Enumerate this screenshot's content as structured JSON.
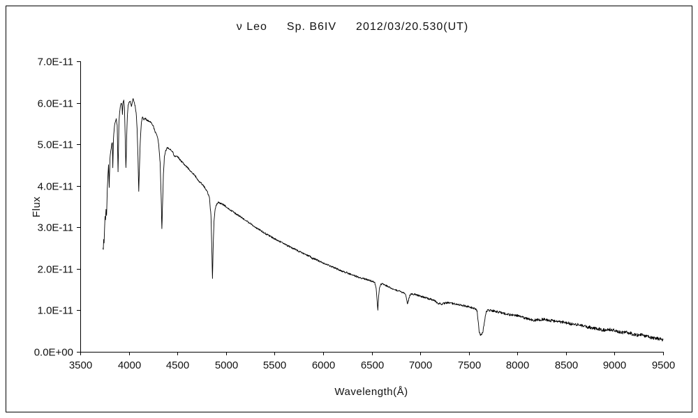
{
  "title": {
    "star": "ν Leo",
    "spectral_type": "Sp. B6IV",
    "date": "2012/03/20.530(UT)"
  },
  "chart_data": {
    "type": "line",
    "title": "ν Leo  Sp. B6IV  2012/03/20.530(UT)",
    "xlabel": "Wavelength(Å)",
    "ylabel": "Flux",
    "xlim": [
      3500,
      9500
    ],
    "ylim": [
      0,
      7e-11
    ],
    "x_ticks": [
      3500,
      4000,
      4500,
      5000,
      5500,
      6000,
      6500,
      7000,
      7500,
      8000,
      8500,
      9000,
      9500
    ],
    "y_tick_labels": [
      "0.0E+00",
      "1.0E-11",
      "2.0E-11",
      "3.0E-11",
      "4.0E-11",
      "5.0E-11",
      "6.0E-11",
      "7.0E-11"
    ],
    "grid": false,
    "legend": false,
    "line_color": "#000000",
    "points_scale": 1e-11,
    "points": [
      [
        3733,
        2.52
      ],
      [
        3737,
        2.45
      ],
      [
        3741,
        2.72
      ],
      [
        3745,
        2.62
      ],
      [
        3750,
        2.95
      ],
      [
        3755,
        3.28
      ],
      [
        3760,
        3.18
      ],
      [
        3765,
        3.45
      ],
      [
        3771,
        3.28
      ],
      [
        3778,
        3.9
      ],
      [
        3785,
        4.28
      ],
      [
        3791,
        4.5
      ],
      [
        3798,
        3.95
      ],
      [
        3806,
        4.68
      ],
      [
        3815,
        4.85
      ],
      [
        3824,
        5.0
      ],
      [
        3830,
        5.05
      ],
      [
        3835,
        4.42
      ],
      [
        3842,
        5.15
      ],
      [
        3850,
        5.4
      ],
      [
        3860,
        5.55
      ],
      [
        3870,
        5.6
      ],
      [
        3880,
        5.45
      ],
      [
        3889,
        4.35
      ],
      [
        3898,
        5.5
      ],
      [
        3905,
        5.78
      ],
      [
        3915,
        5.95
      ],
      [
        3925,
        6.0
      ],
      [
        3930,
        5.9
      ],
      [
        3934,
        5.72
      ],
      [
        3940,
        6.0
      ],
      [
        3948,
        6.08
      ],
      [
        3955,
        5.88
      ],
      [
        3962,
        5.2
      ],
      [
        3970,
        4.42
      ],
      [
        3978,
        5.2
      ],
      [
        3985,
        5.7
      ],
      [
        3993,
        5.95
      ],
      [
        4001,
        6.0
      ],
      [
        4010,
        6.05
      ],
      [
        4019,
        6.0
      ],
      [
        4026,
        5.9
      ],
      [
        4035,
        6.02
      ],
      [
        4045,
        6.1
      ],
      [
        4055,
        6.0
      ],
      [
        4065,
        5.92
      ],
      [
        4075,
        5.75
      ],
      [
        4085,
        5.4
      ],
      [
        4094,
        4.7
      ],
      [
        4102,
        3.85
      ],
      [
        4110,
        4.5
      ],
      [
        4118,
        5.1
      ],
      [
        4128,
        5.5
      ],
      [
        4140,
        5.65
      ],
      [
        4155,
        5.6
      ],
      [
        4170,
        5.62
      ],
      [
        4190,
        5.58
      ],
      [
        4210,
        5.55
      ],
      [
        4230,
        5.52
      ],
      [
        4250,
        5.45
      ],
      [
        4271,
        5.3
      ],
      [
        4290,
        5.22
      ],
      [
        4308,
        5.0
      ],
      [
        4322,
        4.55
      ],
      [
        4332,
        3.8
      ],
      [
        4340,
        2.95
      ],
      [
        4348,
        3.62
      ],
      [
        4356,
        4.3
      ],
      [
        4366,
        4.7
      ],
      [
        4380,
        4.85
      ],
      [
        4395,
        4.92
      ],
      [
        4410,
        4.9
      ],
      [
        4430,
        4.87
      ],
      [
        4450,
        4.83
      ],
      [
        4471,
        4.7
      ],
      [
        4490,
        4.73
      ],
      [
        4510,
        4.68
      ],
      [
        4530,
        4.62
      ],
      [
        4550,
        4.57
      ],
      [
        4570,
        4.52
      ],
      [
        4590,
        4.47
      ],
      [
        4610,
        4.42
      ],
      [
        4630,
        4.37
      ],
      [
        4650,
        4.32
      ],
      [
        4670,
        4.27
      ],
      [
        4690,
        4.22
      ],
      [
        4713,
        4.12
      ],
      [
        4730,
        4.1
      ],
      [
        4750,
        4.05
      ],
      [
        4770,
        4.0
      ],
      [
        4790,
        3.93
      ],
      [
        4810,
        3.85
      ],
      [
        4830,
        3.7
      ],
      [
        4845,
        3.3
      ],
      [
        4853,
        2.6
      ],
      [
        4861,
        1.75
      ],
      [
        4869,
        2.6
      ],
      [
        4877,
        3.15
      ],
      [
        4886,
        3.4
      ],
      [
        4895,
        3.5
      ],
      [
        4905,
        3.55
      ],
      [
        4920,
        3.6
      ],
      [
        4940,
        3.58
      ],
      [
        4960,
        3.56
      ],
      [
        4980,
        3.53
      ],
      [
        5000,
        3.5
      ],
      [
        5025,
        3.45
      ],
      [
        5050,
        3.41
      ],
      [
        5075,
        3.37
      ],
      [
        5100,
        3.33
      ],
      [
        5125,
        3.29
      ],
      [
        5150,
        3.25
      ],
      [
        5175,
        3.21
      ],
      [
        5200,
        3.17
      ],
      [
        5225,
        3.13
      ],
      [
        5250,
        3.09
      ],
      [
        5275,
        3.05
      ],
      [
        5300,
        3.01
      ],
      [
        5330,
        2.96
      ],
      [
        5360,
        2.92
      ],
      [
        5390,
        2.87
      ],
      [
        5420,
        2.83
      ],
      [
        5450,
        2.79
      ],
      [
        5480,
        2.75
      ],
      [
        5510,
        2.71
      ],
      [
        5540,
        2.67
      ],
      [
        5570,
        2.64
      ],
      [
        5600,
        2.6
      ],
      [
        5630,
        2.56
      ],
      [
        5660,
        2.53
      ],
      [
        5690,
        2.49
      ],
      [
        5720,
        2.46
      ],
      [
        5750,
        2.42
      ],
      [
        5780,
        2.39
      ],
      [
        5810,
        2.35
      ],
      [
        5840,
        2.32
      ],
      [
        5870,
        2.29
      ],
      [
        5890,
        2.25
      ],
      [
        5912,
        2.24
      ],
      [
        5940,
        2.21
      ],
      [
        5970,
        2.17
      ],
      [
        6000,
        2.14
      ],
      [
        6030,
        2.11
      ],
      [
        6060,
        2.08
      ],
      [
        6090,
        2.05
      ],
      [
        6120,
        2.02
      ],
      [
        6150,
        1.99
      ],
      [
        6180,
        1.96
      ],
      [
        6210,
        1.93
      ],
      [
        6240,
        1.91
      ],
      [
        6270,
        1.88
      ],
      [
        6300,
        1.85
      ],
      [
        6330,
        1.83
      ],
      [
        6360,
        1.8
      ],
      [
        6390,
        1.78
      ],
      [
        6420,
        1.76
      ],
      [
        6450,
        1.74
      ],
      [
        6480,
        1.72
      ],
      [
        6510,
        1.7
      ],
      [
        6532,
        1.66
      ],
      [
        6546,
        1.52
      ],
      [
        6556,
        1.22
      ],
      [
        6563,
        1.0
      ],
      [
        6571,
        1.32
      ],
      [
        6580,
        1.55
      ],
      [
        6591,
        1.62
      ],
      [
        6605,
        1.64
      ],
      [
        6620,
        1.62
      ],
      [
        6640,
        1.6
      ],
      [
        6660,
        1.58
      ],
      [
        6680,
        1.56
      ],
      [
        6700,
        1.54
      ],
      [
        6720,
        1.52
      ],
      [
        6740,
        1.5
      ],
      [
        6760,
        1.48
      ],
      [
        6780,
        1.47
      ],
      [
        6800,
        1.45
      ],
      [
        6820,
        1.43
      ],
      [
        6840,
        1.41
      ],
      [
        6855,
        1.34
      ],
      [
        6867,
        1.16
      ],
      [
        6876,
        1.21
      ],
      [
        6884,
        1.3
      ],
      [
        6895,
        1.37
      ],
      [
        6910,
        1.4
      ],
      [
        6930,
        1.39
      ],
      [
        6950,
        1.38
      ],
      [
        6970,
        1.36
      ],
      [
        7000,
        1.34
      ],
      [
        7030,
        1.32
      ],
      [
        7060,
        1.3
      ],
      [
        7090,
        1.28
      ],
      [
        7120,
        1.26
      ],
      [
        7150,
        1.23
      ],
      [
        7170,
        1.19
      ],
      [
        7190,
        1.17
      ],
      [
        7215,
        1.15
      ],
      [
        7240,
        1.16
      ],
      [
        7265,
        1.18
      ],
      [
        7290,
        1.18
      ],
      [
        7315,
        1.17
      ],
      [
        7340,
        1.16
      ],
      [
        7370,
        1.15
      ],
      [
        7400,
        1.13
      ],
      [
        7430,
        1.12
      ],
      [
        7460,
        1.1
      ],
      [
        7490,
        1.09
      ],
      [
        7520,
        1.07
      ],
      [
        7550,
        1.05
      ],
      [
        7572,
        1.03
      ],
      [
        7586,
        0.97
      ],
      [
        7596,
        0.73
      ],
      [
        7606,
        0.5
      ],
      [
        7616,
        0.42
      ],
      [
        7626,
        0.4
      ],
      [
        7636,
        0.44
      ],
      [
        7646,
        0.5
      ],
      [
        7656,
        0.63
      ],
      [
        7666,
        0.8
      ],
      [
        7676,
        0.93
      ],
      [
        7686,
        0.99
      ],
      [
        7700,
        1.01
      ],
      [
        7720,
        1.0
      ],
      [
        7740,
        0.99
      ],
      [
        7762,
        0.98
      ],
      [
        7784,
        0.97
      ],
      [
        7806,
        0.96
      ],
      [
        7830,
        0.94
      ],
      [
        7856,
        0.93
      ],
      [
        7882,
        0.91
      ],
      [
        7910,
        0.9
      ],
      [
        7940,
        0.89
      ],
      [
        7970,
        0.88
      ],
      [
        8000,
        0.87
      ],
      [
        8030,
        0.85
      ],
      [
        8060,
        0.83
      ],
      [
        8090,
        0.81
      ],
      [
        8120,
        0.79
      ],
      [
        8150,
        0.77
      ],
      [
        8180,
        0.76
      ],
      [
        8210,
        0.77
      ],
      [
        8240,
        0.78
      ],
      [
        8270,
        0.78
      ],
      [
        8300,
        0.77
      ],
      [
        8330,
        0.76
      ],
      [
        8360,
        0.75
      ],
      [
        8390,
        0.74
      ],
      [
        8420,
        0.73
      ],
      [
        8450,
        0.72
      ],
      [
        8480,
        0.71
      ],
      [
        8510,
        0.7
      ],
      [
        8540,
        0.68
      ],
      [
        8570,
        0.67
      ],
      [
        8600,
        0.66
      ],
      [
        8630,
        0.65
      ],
      [
        8660,
        0.63
      ],
      [
        8690,
        0.62
      ],
      [
        8720,
        0.6
      ],
      [
        8750,
        0.59
      ],
      [
        8780,
        0.57
      ],
      [
        8810,
        0.56
      ],
      [
        8840,
        0.55
      ],
      [
        8870,
        0.53
      ],
      [
        8900,
        0.52
      ],
      [
        8930,
        0.55
      ],
      [
        8960,
        0.53
      ],
      [
        8990,
        0.52
      ],
      [
        9020,
        0.5
      ],
      [
        9050,
        0.48
      ],
      [
        9080,
        0.47
      ],
      [
        9110,
        0.48
      ],
      [
        9140,
        0.46
      ],
      [
        9170,
        0.44
      ],
      [
        9200,
        0.42
      ],
      [
        9230,
        0.4
      ],
      [
        9260,
        0.4
      ],
      [
        9290,
        0.41
      ],
      [
        9320,
        0.38
      ],
      [
        9350,
        0.36
      ],
      [
        9380,
        0.35
      ],
      [
        9410,
        0.33
      ],
      [
        9440,
        0.32
      ],
      [
        9470,
        0.3
      ],
      [
        9500,
        0.29
      ]
    ]
  }
}
